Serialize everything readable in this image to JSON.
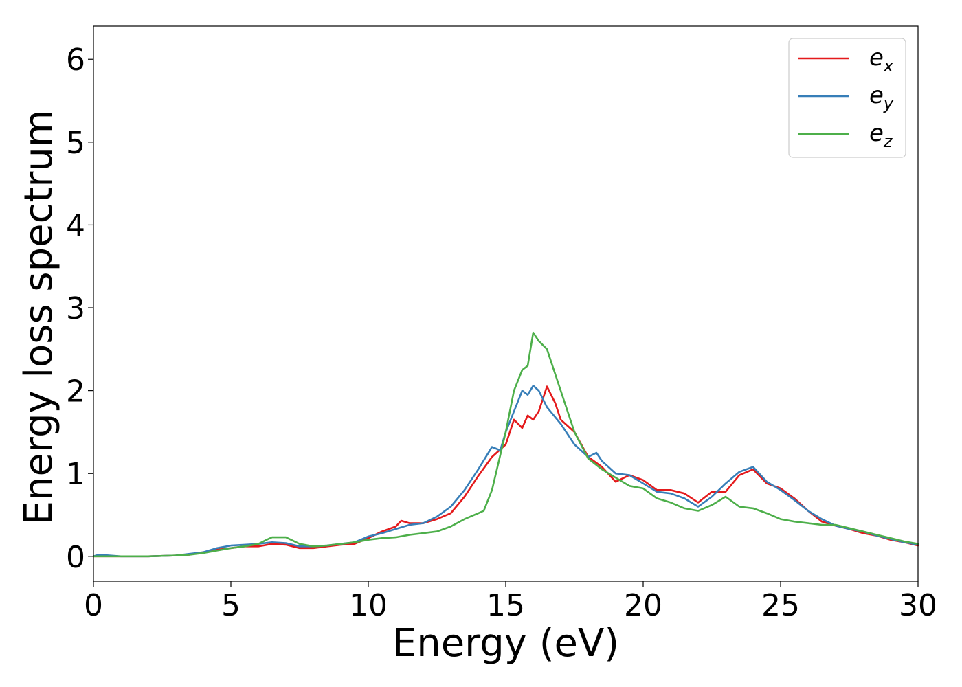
{
  "chart_data": {
    "type": "line",
    "title": "",
    "xlabel": "Energy (eV)",
    "ylabel": "Energy loss spectrum",
    "xlim": [
      0,
      30
    ],
    "ylim": [
      -0.3,
      6.4
    ],
    "xticks": [
      0,
      5,
      10,
      15,
      20,
      25,
      30
    ],
    "xtick_labels": [
      "0",
      "5",
      "10",
      "15",
      "20",
      "25",
      "30"
    ],
    "yticks": [
      0,
      1,
      2,
      3,
      4,
      5,
      6
    ],
    "ytick_labels": [
      "0",
      "1",
      "2",
      "3",
      "4",
      "5",
      "6"
    ],
    "grid": false,
    "legend_position": "top-right",
    "series": [
      {
        "name": "e_x",
        "label_base": "e",
        "label_sub": "x",
        "color": "#e41a1c",
        "x": [
          0,
          0.2,
          1,
          2,
          3,
          3.5,
          4,
          4.5,
          5,
          5.5,
          6,
          6.5,
          7,
          7.5,
          8,
          8.5,
          9,
          9.5,
          10,
          10.5,
          11,
          11.2,
          11.5,
          12,
          12.5,
          13,
          13.5,
          14,
          14.5,
          15,
          15.3,
          15.6,
          15.8,
          16,
          16.2,
          16.5,
          16.8,
          17,
          17.5,
          18,
          18.5,
          19,
          19.5,
          20,
          20.5,
          21,
          21.5,
          22,
          22.5,
          23,
          23.5,
          24,
          24.5,
          25,
          25.5,
          26,
          26.5,
          27,
          27.5,
          28,
          28.5,
          29,
          29.5,
          30
        ],
        "y": [
          0.0,
          0.0,
          0.0,
          0.0,
          0.01,
          0.02,
          0.05,
          0.08,
          0.1,
          0.12,
          0.12,
          0.15,
          0.14,
          0.1,
          0.1,
          0.12,
          0.14,
          0.15,
          0.22,
          0.3,
          0.36,
          0.43,
          0.4,
          0.4,
          0.45,
          0.52,
          0.72,
          0.97,
          1.2,
          1.35,
          1.65,
          1.55,
          1.7,
          1.65,
          1.75,
          2.05,
          1.85,
          1.65,
          1.5,
          1.2,
          1.08,
          0.9,
          0.98,
          0.92,
          0.8,
          0.8,
          0.76,
          0.65,
          0.78,
          0.78,
          0.98,
          1.05,
          0.88,
          0.82,
          0.7,
          0.55,
          0.42,
          0.37,
          0.33,
          0.28,
          0.25,
          0.2,
          0.17,
          0.13
        ]
      },
      {
        "name": "e_y",
        "label_base": "e",
        "label_sub": "y",
        "color": "#377eb8",
        "x": [
          0,
          0.2,
          1,
          2,
          3,
          3.5,
          4,
          4.5,
          5,
          5.5,
          6,
          6.5,
          7,
          7.5,
          8,
          8.5,
          9,
          9.5,
          10,
          10.5,
          11,
          11.5,
          12,
          12.5,
          13,
          13.5,
          14,
          14.5,
          14.8,
          15,
          15.3,
          15.6,
          15.8,
          16,
          16.2,
          16.5,
          17,
          17.5,
          18,
          18.3,
          18.5,
          19,
          19.5,
          20,
          20.5,
          21,
          21.5,
          22,
          22.5,
          23,
          23.5,
          24,
          24.5,
          25,
          25.5,
          26,
          26.5,
          27,
          27.5,
          28,
          28.5,
          29,
          29.5,
          30
        ],
        "y": [
          0.0,
          0.02,
          0.0,
          0.0,
          0.01,
          0.03,
          0.05,
          0.1,
          0.13,
          0.14,
          0.15,
          0.17,
          0.16,
          0.12,
          0.12,
          0.13,
          0.15,
          0.17,
          0.24,
          0.28,
          0.33,
          0.38,
          0.4,
          0.48,
          0.6,
          0.8,
          1.05,
          1.32,
          1.28,
          1.5,
          1.75,
          2.0,
          1.95,
          2.06,
          2.0,
          1.8,
          1.6,
          1.35,
          1.2,
          1.25,
          1.15,
          1.0,
          0.98,
          0.88,
          0.78,
          0.76,
          0.7,
          0.6,
          0.72,
          0.88,
          1.02,
          1.08,
          0.9,
          0.8,
          0.68,
          0.55,
          0.45,
          0.37,
          0.33,
          0.3,
          0.25,
          0.21,
          0.17,
          0.14
        ]
      },
      {
        "name": "e_z",
        "label_base": "e",
        "label_sub": "z",
        "color": "#4daf4a",
        "x": [
          0,
          0.2,
          1,
          2,
          3,
          3.5,
          4,
          4.5,
          5,
          5.5,
          6,
          6.3,
          6.5,
          7,
          7.5,
          8,
          8.5,
          9,
          9.5,
          10,
          10.5,
          11,
          11.5,
          12,
          12.5,
          13,
          13.5,
          14,
          14.2,
          14.5,
          15,
          15.3,
          15.6,
          15.8,
          16,
          16.2,
          16.5,
          17,
          17.5,
          18,
          18.5,
          19,
          19.5,
          20,
          20.5,
          21,
          21.5,
          22,
          22.5,
          23,
          23.5,
          24,
          24.5,
          25,
          25.5,
          26,
          26.5,
          27,
          27.5,
          28,
          28.5,
          29,
          29.5,
          30
        ],
        "y": [
          0.0,
          0.0,
          0.0,
          0.0,
          0.01,
          0.02,
          0.04,
          0.07,
          0.1,
          0.12,
          0.15,
          0.2,
          0.23,
          0.23,
          0.15,
          0.12,
          0.13,
          0.15,
          0.17,
          0.2,
          0.22,
          0.23,
          0.26,
          0.28,
          0.3,
          0.36,
          0.45,
          0.52,
          0.55,
          0.8,
          1.5,
          2.0,
          2.25,
          2.3,
          2.7,
          2.6,
          2.5,
          2.0,
          1.5,
          1.18,
          1.05,
          0.95,
          0.85,
          0.82,
          0.7,
          0.65,
          0.58,
          0.55,
          0.62,
          0.72,
          0.6,
          0.58,
          0.52,
          0.45,
          0.42,
          0.4,
          0.38,
          0.38,
          0.34,
          0.3,
          0.26,
          0.22,
          0.18,
          0.15
        ]
      }
    ]
  }
}
